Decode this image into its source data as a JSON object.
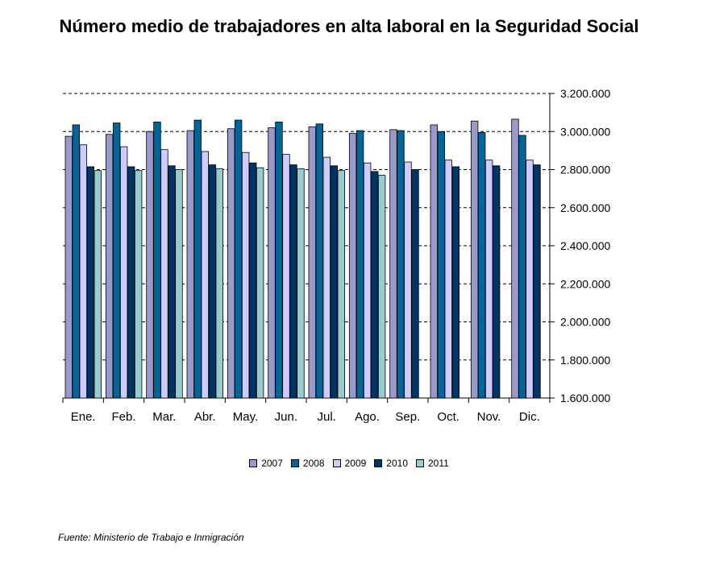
{
  "chart_data": {
    "type": "bar",
    "title": "Número medio de trabajadores en alta laboral en la Seguridad Social",
    "categories": [
      "Ene.",
      "Feb.",
      "Mar.",
      "Abr.",
      "May.",
      "Jun.",
      "Jul.",
      "Ago.",
      "Sep.",
      "Oct.",
      "Nov.",
      "Dic."
    ],
    "series": [
      {
        "name": "2007",
        "color": "#9999cc",
        "values": [
          2975000,
          2985000,
          3000000,
          3005000,
          3015000,
          3020000,
          3025000,
          2990000,
          3010000,
          3035000,
          3055000,
          3065000
        ]
      },
      {
        "name": "2008",
        "color": "#006699",
        "values": [
          3035000,
          3045000,
          3050000,
          3060000,
          3060000,
          3050000,
          3040000,
          3005000,
          3005000,
          3000000,
          2995000,
          2980000
        ]
      },
      {
        "name": "2009",
        "color": "#ccccff",
        "values": [
          2930000,
          2920000,
          2905000,
          2895000,
          2890000,
          2880000,
          2865000,
          2835000,
          2840000,
          2850000,
          2850000,
          2850000
        ]
      },
      {
        "name": "2010",
        "color": "#003366",
        "values": [
          2815000,
          2815000,
          2820000,
          2825000,
          2835000,
          2825000,
          2820000,
          2790000,
          2800000,
          2815000,
          2820000,
          2825000
        ]
      },
      {
        "name": "2011",
        "color": "#99cccc",
        "values": [
          2795000,
          2795000,
          2800000,
          2805000,
          2810000,
          2805000,
          2795000,
          2770000,
          null,
          null,
          null,
          null
        ]
      }
    ],
    "ylim": [
      1600000,
      3200000
    ],
    "yticks": [
      "3.200.000",
      "3.000.000",
      "2.800.000",
      "2.600.000",
      "2.400.000",
      "2.200.000",
      "2.000.000",
      "1.800.000",
      "1.600.000"
    ],
    "ytick_values": [
      3200000,
      3000000,
      2800000,
      2600000,
      2400000,
      2200000,
      2000000,
      1800000,
      1600000
    ],
    "grid": "horizontal dashed",
    "legend_position": "bottom"
  },
  "source": "Fuente: Ministerio de Trabajo e Inmigración"
}
